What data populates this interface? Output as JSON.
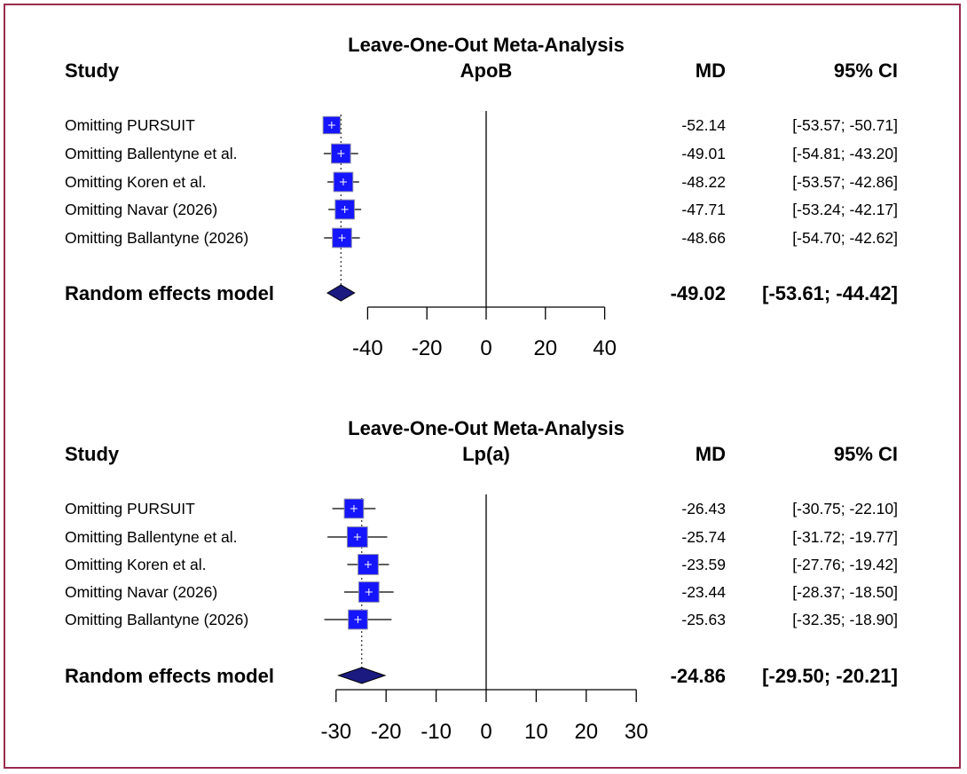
{
  "frame_color": "#9b2c4e",
  "chart_data": [
    {
      "type": "forest",
      "title": "Leave-One-Out Meta-Analysis",
      "subtitle": "ApoB",
      "columns": {
        "study": "Study",
        "md": "MD",
        "ci": "95% CI"
      },
      "xlim": [
        -50,
        40
      ],
      "ticks": [
        "-40",
        "-20",
        "0",
        "20",
        "40"
      ],
      "tick_values": [
        -40,
        -20,
        0,
        20,
        40
      ],
      "square_color": "#1515ff",
      "diamond_color": "#1a1a80",
      "studies": [
        {
          "label": "Omitting PURSUIT",
          "md": -52.14,
          "lo": -53.57,
          "hi": -50.71,
          "md_text": "-52.14",
          "ci_text": "[-53.57; -50.71]",
          "weight": 0.45
        },
        {
          "label": "Omitting Ballentyne et al.",
          "md": -49.01,
          "lo": -54.81,
          "hi": -43.2,
          "md_text": "-49.01",
          "ci_text": "[-54.81; -43.20]",
          "weight": 0.55
        },
        {
          "label": "Omitting Koren et al.",
          "md": -48.22,
          "lo": -53.57,
          "hi": -42.86,
          "md_text": "-48.22",
          "ci_text": "[-53.57; -42.86]",
          "weight": 0.55
        },
        {
          "label": "Omitting Navar (2026)",
          "md": -47.71,
          "lo": -53.24,
          "hi": -42.17,
          "md_text": "-47.71",
          "ci_text": "[-53.24; -42.17]",
          "weight": 0.55
        },
        {
          "label": "Omitting Ballantyne (2026)",
          "md": -48.66,
          "lo": -54.7,
          "hi": -42.62,
          "md_text": "-48.66",
          "ci_text": "[-54.70; -42.62]",
          "weight": 0.55
        }
      ],
      "summary": {
        "label": "Random effects model",
        "md": -49.02,
        "lo": -53.61,
        "hi": -44.42,
        "md_text": "-49.02",
        "ci_text": "[-53.61; -44.42]"
      }
    },
    {
      "type": "forest",
      "title": "Leave-One-Out Meta-Analysis",
      "subtitle": "Lp(a)",
      "columns": {
        "study": "Study",
        "md": "MD",
        "ci": "95% CI"
      },
      "xlim": [
        -30,
        30
      ],
      "ticks": [
        "-30",
        "-20",
        "-10",
        "0",
        "10",
        "20",
        "30"
      ],
      "tick_values": [
        -30,
        -20,
        -10,
        0,
        10,
        20,
        30
      ],
      "square_color": "#1515ff",
      "diamond_color": "#1a1a80",
      "studies": [
        {
          "label": "Omitting PURSUIT",
          "md": -26.43,
          "lo": -30.75,
          "hi": -22.1,
          "md_text": "-26.43",
          "ci_text": "[-30.75; -22.10]",
          "weight": 0.55
        },
        {
          "label": "Omitting Ballentyne et al.",
          "md": -25.74,
          "lo": -31.72,
          "hi": -19.77,
          "md_text": "-25.74",
          "ci_text": "[-31.72; -19.77]",
          "weight": 0.6
        },
        {
          "label": "Omitting Koren et al.",
          "md": -23.59,
          "lo": -27.76,
          "hi": -19.42,
          "md_text": "-23.59",
          "ci_text": "[-27.76; -19.42]",
          "weight": 0.6
        },
        {
          "label": "Omitting Navar (2026)",
          "md": -23.44,
          "lo": -28.37,
          "hi": -18.5,
          "md_text": "-23.44",
          "ci_text": "[-28.37; -18.50]",
          "weight": 0.6
        },
        {
          "label": "Omitting Ballantyne (2026)",
          "md": -25.63,
          "lo": -32.35,
          "hi": -18.9,
          "md_text": "-25.63",
          "ci_text": "[-32.35; -18.90]",
          "weight": 0.55
        }
      ],
      "summary": {
        "label": "Random effects model",
        "md": -24.86,
        "lo": -29.5,
        "hi": -20.21,
        "md_text": "-24.86",
        "ci_text": "[-29.50; -20.21]"
      }
    }
  ]
}
